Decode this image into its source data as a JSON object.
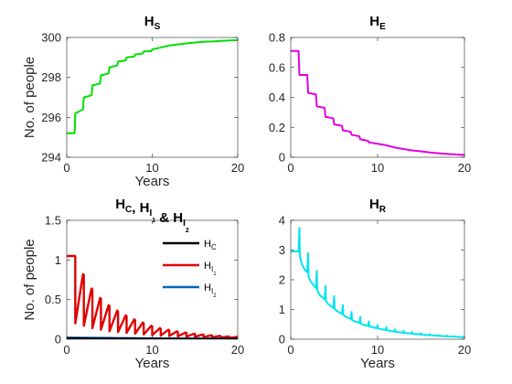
{
  "chart_data": [
    {
      "id": "hs",
      "type": "line",
      "title": "HS",
      "title_main": "H",
      "title_sub": "S",
      "xlabel": "Years",
      "ylabel": "No. of people",
      "xlim": [
        0,
        20
      ],
      "ylim": [
        294,
        300
      ],
      "xticks": [
        0,
        10,
        20
      ],
      "yticks": [
        294,
        296,
        298,
        300
      ],
      "grid": false,
      "series": [
        {
          "color": "#00e000",
          "x": [
            0,
            0.9,
            0.95,
            1.0,
            1.9,
            2.0,
            2.9,
            3.0,
            3.9,
            4.0,
            4.9,
            5.0,
            5.9,
            6.0,
            6.9,
            7.0,
            7.9,
            8.0,
            8.9,
            9.0,
            9.9,
            10.0,
            11.0,
            12.0,
            13.0,
            14.0,
            15.0,
            16.0,
            17.0,
            18.0,
            19.0,
            20.0
          ],
          "y": [
            295.2,
            295.2,
            295.5,
            296.2,
            296.4,
            297.0,
            297.1,
            297.6,
            297.7,
            298.1,
            298.2,
            298.5,
            298.6,
            298.8,
            298.85,
            299.0,
            299.05,
            299.15,
            299.2,
            299.3,
            299.32,
            299.4,
            299.5,
            299.6,
            299.65,
            299.7,
            299.75,
            299.78,
            299.8,
            299.83,
            299.85,
            299.87
          ]
        }
      ]
    },
    {
      "id": "he",
      "type": "line",
      "title": "HE",
      "title_main": "H",
      "title_sub": "E",
      "xlabel": "",
      "ylabel": "",
      "xlim": [
        0,
        20
      ],
      "ylim": [
        0,
        0.8
      ],
      "xticks": [
        0,
        10,
        20
      ],
      "yticks": [
        0,
        0.2,
        0.4,
        0.6,
        0.8
      ],
      "grid": false,
      "series": [
        {
          "color": "#e000e0",
          "x": [
            0,
            0.9,
            1.0,
            1.9,
            2.0,
            2.9,
            3.0,
            3.9,
            4.0,
            4.9,
            5.0,
            5.9,
            6.0,
            6.9,
            7.0,
            7.9,
            8.0,
            8.9,
            9.0,
            10.0,
            11.0,
            12.0,
            13.0,
            14.0,
            15.0,
            16.0,
            17.0,
            18.0,
            19.0,
            20.0
          ],
          "y": [
            0.71,
            0.71,
            0.55,
            0.55,
            0.43,
            0.42,
            0.34,
            0.33,
            0.27,
            0.26,
            0.22,
            0.21,
            0.18,
            0.17,
            0.15,
            0.14,
            0.12,
            0.11,
            0.1,
            0.09,
            0.08,
            0.065,
            0.055,
            0.045,
            0.04,
            0.032,
            0.027,
            0.022,
            0.018,
            0.015
          ]
        }
      ]
    },
    {
      "id": "hc",
      "type": "line",
      "title": "HC, HI1 & HI2",
      "title_parts": [
        {
          "t": "H",
          "s": ""
        },
        {
          "t": "",
          "s": "C"
        },
        {
          "t": ", H",
          "s": ""
        },
        {
          "t": "",
          "s": "I"
        },
        {
          "t": "",
          "ss": "1"
        },
        {
          "t": " & H",
          "s": ""
        },
        {
          "t": "",
          "s": "I"
        },
        {
          "t": "",
          "ss": "2"
        }
      ],
      "xlabel": "Years",
      "ylabel": "No. of people",
      "xlim": [
        0,
        20
      ],
      "ylim": [
        0,
        1.5
      ],
      "xticks": [
        0,
        10,
        20
      ],
      "yticks": [
        0,
        0.5,
        1,
        1.5
      ],
      "grid": false,
      "legend": {
        "placement": "top-right",
        "entries": [
          {
            "main": "H",
            "sub": "C",
            "subsub": "",
            "color": "#000000"
          },
          {
            "main": "H",
            "sub": "I",
            "subsub": "1",
            "color": "#e00000"
          },
          {
            "main": "H",
            "sub": "I",
            "subsub": "2",
            "color": "#0066bb"
          }
        ]
      },
      "series": [
        {
          "color": "#e00000",
          "x": [
            0,
            0.95,
            1.0,
            1.0,
            1.9,
            2.0,
            2.0,
            2.9,
            3.0,
            3.0,
            3.9,
            4.0,
            4.0,
            4.9,
            5.0,
            5.0,
            5.9,
            6.0,
            6.0,
            6.9,
            7.0,
            7.0,
            7.9,
            8.0,
            8.0,
            8.9,
            9.0,
            9.0,
            9.9,
            10.0,
            10.0,
            10.9,
            11.0,
            11.0,
            11.9,
            12.0,
            12.0,
            12.9,
            13.0,
            13.0,
            13.9,
            14.0,
            14.0,
            14.9,
            15.0,
            15.0,
            15.9,
            16.0,
            16.0,
            16.9,
            17.0,
            17.0,
            17.9,
            18.0,
            18.0,
            18.9,
            19.0,
            19.0,
            20.0
          ],
          "y": [
            1.05,
            1.05,
            1.04,
            0.2,
            0.82,
            0.81,
            0.17,
            0.64,
            0.63,
            0.14,
            0.52,
            0.51,
            0.12,
            0.43,
            0.42,
            0.1,
            0.36,
            0.35,
            0.09,
            0.3,
            0.29,
            0.08,
            0.25,
            0.24,
            0.07,
            0.21,
            0.2,
            0.06,
            0.17,
            0.16,
            0.05,
            0.14,
            0.13,
            0.045,
            0.12,
            0.11,
            0.04,
            0.1,
            0.09,
            0.035,
            0.085,
            0.08,
            0.03,
            0.07,
            0.065,
            0.028,
            0.06,
            0.055,
            0.025,
            0.05,
            0.045,
            0.022,
            0.042,
            0.038,
            0.02,
            0.035,
            0.032,
            0.018,
            0.028
          ]
        },
        {
          "color": "#0066bb",
          "x": [
            0,
            5,
            10,
            15,
            20
          ],
          "y": [
            0.02,
            0.015,
            0.01,
            0.008,
            0.006
          ]
        },
        {
          "color": "#000000",
          "x": [
            0,
            5,
            10,
            15,
            20
          ],
          "y": [
            0.01,
            0.008,
            0.005,
            0.004,
            0.003
          ]
        }
      ]
    },
    {
      "id": "hr",
      "type": "line",
      "title": "HR",
      "title_main": "H",
      "title_sub": "R",
      "xlabel": "Years",
      "ylabel": "",
      "xlim": [
        0,
        20
      ],
      "ylim": [
        0,
        4
      ],
      "xticks": [
        0,
        10,
        20
      ],
      "yticks": [
        0,
        1,
        2,
        3,
        4
      ],
      "grid": false,
      "series": [
        {
          "color": "#00e5ee",
          "x": [
            0,
            0.9,
            1.0,
            1.05,
            1.3,
            1.6,
            1.9,
            2.0,
            2.05,
            2.3,
            2.6,
            2.9,
            3.0,
            3.05,
            3.3,
            3.6,
            3.9,
            4.0,
            4.05,
            4.3,
            4.6,
            4.9,
            5.0,
            5.05,
            5.3,
            5.6,
            5.9,
            6.0,
            6.05,
            6.3,
            6.6,
            6.9,
            7.0,
            7.05,
            7.3,
            7.6,
            7.9,
            8.0,
            8.05,
            8.3,
            8.6,
            8.9,
            9.0,
            9.05,
            9.5,
            9.9,
            10.0,
            10.05,
            10.9,
            11.0,
            11.05,
            11.9,
            12.0,
            12.05,
            12.9,
            13.0,
            13.05,
            13.9,
            14.0,
            14.05,
            14.9,
            15.0,
            15.05,
            15.9,
            16.0,
            16.05,
            16.9,
            17.0,
            17.05,
            17.9,
            18.0,
            18.05,
            18.9,
            19.0,
            19.05,
            20.0
          ],
          "y": [
            2.95,
            2.95,
            3.75,
            2.8,
            2.5,
            2.35,
            2.25,
            2.9,
            2.1,
            1.95,
            1.82,
            1.72,
            2.3,
            1.65,
            1.5,
            1.42,
            1.35,
            1.8,
            1.3,
            1.18,
            1.12,
            1.05,
            1.45,
            1.02,
            0.95,
            0.9,
            0.85,
            1.15,
            0.82,
            0.76,
            0.72,
            0.68,
            0.92,
            0.65,
            0.61,
            0.58,
            0.55,
            0.75,
            0.53,
            0.49,
            0.47,
            0.45,
            0.6,
            0.43,
            0.4,
            0.37,
            0.48,
            0.36,
            0.31,
            0.4,
            0.3,
            0.26,
            0.33,
            0.25,
            0.22,
            0.28,
            0.21,
            0.19,
            0.24,
            0.18,
            0.16,
            0.2,
            0.15,
            0.14,
            0.17,
            0.13,
            0.12,
            0.14,
            0.11,
            0.1,
            0.12,
            0.095,
            0.085,
            0.1,
            0.08,
            0.07
          ]
        }
      ]
    }
  ]
}
